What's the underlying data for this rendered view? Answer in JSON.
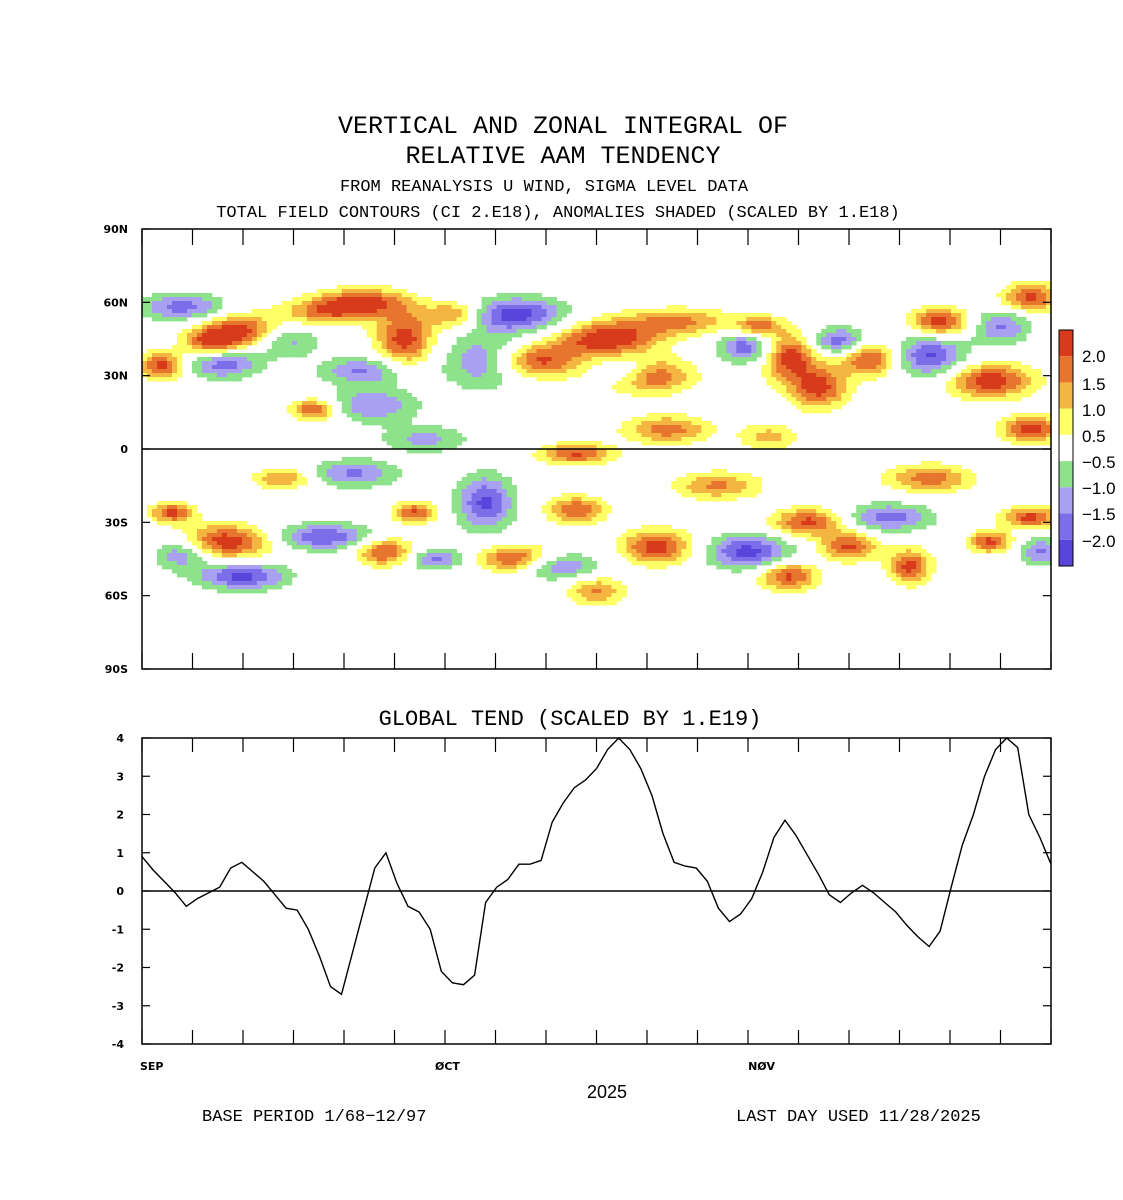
{
  "chart_data": [
    {
      "type": "heatmap",
      "title_line1": "VERTICAL AND ZONAL INTEGRAL OF",
      "title_line2": "RELATIVE AAM TENDENCY",
      "subtitle1": "FROM REANALYSIS U WIND,  SIGMA LEVEL DATA",
      "subtitle2": "TOTAL FIELD CONTOURS (CI 2.E18),  ANOMALIES SHADED (SCALED BY 1.E18)",
      "x_axis": "time",
      "xlim_days": [
        0,
        90
      ],
      "y_ticks": [
        {
          "label": "90N",
          "lat": 90
        },
        {
          "label": "60N",
          "lat": 60
        },
        {
          "label": "30N",
          "lat": 30
        },
        {
          "label": "0",
          "lat": 0
        },
        {
          "label": "30S",
          "lat": -30
        },
        {
          "label": "60S",
          "lat": -60
        },
        {
          "label": "90S",
          "lat": -90
        }
      ],
      "colorbar": {
        "levels": [
          {
            "label": "2.0",
            "color": "#d83a1c"
          },
          {
            "label": "1.5",
            "color": "#e7752e"
          },
          {
            "label": "1.0",
            "color": "#f4b640"
          },
          {
            "label": "0.5",
            "color": "#ffff66"
          },
          {
            "label": "",
            "color": "#ffffff"
          },
          {
            "label": "−0.5",
            "color": "#8ee28c"
          },
          {
            "label": "−1.0",
            "color": "#a9a0f2"
          },
          {
            "label": "−1.5",
            "color": "#7c6ee8"
          },
          {
            "label": "−2.0",
            "color": "#5a45dc"
          }
        ]
      },
      "anomaly_blobs": [
        {
          "d": 2,
          "lat": 34,
          "v": 2.3,
          "sd": 1.5,
          "sl": 4
        },
        {
          "d": 7,
          "lat": 43,
          "v": 2.2,
          "sd": 2,
          "sl": 4
        },
        {
          "d": 10,
          "lat": 48,
          "v": 2.5,
          "sd": 3,
          "sl": 5
        },
        {
          "d": 4,
          "lat": 58,
          "v": -1.8,
          "sd": 3,
          "sl": 4
        },
        {
          "d": 8,
          "lat": 36,
          "v": -2.0,
          "sd": 2.5,
          "sl": 5
        },
        {
          "d": 14,
          "lat": 45,
          "v": -1.6,
          "sd": 2.5,
          "sl": 5
        },
        {
          "d": 18,
          "lat": 56,
          "v": 1.6,
          "sd": 3,
          "sl": 4
        },
        {
          "d": 17,
          "lat": 16,
          "v": 2.1,
          "sd": 1.5,
          "sl": 3
        },
        {
          "d": 22,
          "lat": 60,
          "v": 2.2,
          "sd": 3,
          "sl": 4
        },
        {
          "d": 22,
          "lat": 32,
          "v": -1.6,
          "sd": 3,
          "sl": 4
        },
        {
          "d": 26,
          "lat": 45,
          "v": 2.3,
          "sd": 2,
          "sl": 8
        },
        {
          "d": 23,
          "lat": 18,
          "v": -1.5,
          "sd": 3,
          "sl": 5
        },
        {
          "d": 31,
          "lat": 55,
          "v": 1.8,
          "sd": 2,
          "sl": 4
        },
        {
          "d": 34,
          "lat": 36,
          "v": -1.6,
          "sd": 3,
          "sl": 8
        },
        {
          "d": 37,
          "lat": 55,
          "v": -2.3,
          "sd": 3.5,
          "sl": 5
        },
        {
          "d": 39,
          "lat": 36,
          "v": 2.3,
          "sd": 3,
          "sl": 5
        },
        {
          "d": 46,
          "lat": 45,
          "v": 2.5,
          "sd": 3.5,
          "sl": 5
        },
        {
          "d": 50,
          "lat": 30,
          "v": 2.3,
          "sd": 3,
          "sl": 5
        },
        {
          "d": 48,
          "lat": 32,
          "v": -1.6,
          "sd": 2,
          "sl": 4
        },
        {
          "d": 53,
          "lat": 52,
          "v": 1.6,
          "sd": 4,
          "sl": 4
        },
        {
          "d": 60,
          "lat": 42,
          "v": -2.0,
          "sd": 2,
          "sl": 5
        },
        {
          "d": 64,
          "lat": 38,
          "v": 2.4,
          "sd": 2,
          "sl": 7
        },
        {
          "d": 67,
          "lat": 25,
          "v": 2.2,
          "sd": 2,
          "sl": 6
        },
        {
          "d": 61,
          "lat": 50,
          "v": 2.0,
          "sd": 1.5,
          "sl": 3
        },
        {
          "d": 69,
          "lat": 44,
          "v": -2.0,
          "sd": 2,
          "sl": 4
        },
        {
          "d": 72,
          "lat": 37,
          "v": 2.2,
          "sd": 2,
          "sl": 5
        },
        {
          "d": 78,
          "lat": 38,
          "v": -2.1,
          "sd": 2.5,
          "sl": 6
        },
        {
          "d": 79,
          "lat": 52,
          "v": 2.4,
          "sd": 2,
          "sl": 4
        },
        {
          "d": 84,
          "lat": 28,
          "v": 2.4,
          "sd": 3,
          "sl": 5
        },
        {
          "d": 85,
          "lat": 50,
          "v": -1.6,
          "sd": 2,
          "sl": 5
        },
        {
          "d": 88,
          "lat": 62,
          "v": 2.2,
          "sd": 2,
          "sl": 4
        },
        {
          "d": 88,
          "lat": 8,
          "v": 2.3,
          "sd": 2,
          "sl": 4
        },
        {
          "d": 43,
          "lat": -2,
          "v": 2.1,
          "sd": 2.5,
          "sl": 3
        },
        {
          "d": 52,
          "lat": 8,
          "v": 1.8,
          "sd": 3,
          "sl": 4
        },
        {
          "d": 4,
          "lat": -42,
          "v": -1.9,
          "sd": 2,
          "sl": 5
        },
        {
          "d": 8,
          "lat": -38,
          "v": 2.5,
          "sd": 3.5,
          "sl": 5
        },
        {
          "d": 10,
          "lat": -52,
          "v": -2.2,
          "sd": 3,
          "sl": 4
        },
        {
          "d": 3,
          "lat": -26,
          "v": 2.1,
          "sd": 1.5,
          "sl": 3
        },
        {
          "d": 18,
          "lat": -36,
          "v": -2.0,
          "sd": 3.5,
          "sl": 4
        },
        {
          "d": 24,
          "lat": -42,
          "v": 2.2,
          "sd": 2,
          "sl": 4
        },
        {
          "d": 27,
          "lat": -26,
          "v": 2.1,
          "sd": 1.5,
          "sl": 3
        },
        {
          "d": 29,
          "lat": -45,
          "v": -1.6,
          "sd": 2,
          "sl": 3
        },
        {
          "d": 34,
          "lat": -22,
          "v": -2.1,
          "sd": 2,
          "sl": 8
        },
        {
          "d": 37,
          "lat": -45,
          "v": 2.3,
          "sd": 2.5,
          "sl": 4
        },
        {
          "d": 41,
          "lat": -48,
          "v": -1.6,
          "sd": 3,
          "sl": 4
        },
        {
          "d": 43,
          "lat": -25,
          "v": 2.0,
          "sd": 2,
          "sl": 4
        },
        {
          "d": 51,
          "lat": -40,
          "v": 2.3,
          "sd": 2.5,
          "sl": 5
        },
        {
          "d": 45,
          "lat": -58,
          "v": 1.6,
          "sd": 2,
          "sl": 4
        },
        {
          "d": 60,
          "lat": -42,
          "v": -2.2,
          "sd": 3,
          "sl": 5
        },
        {
          "d": 64,
          "lat": -52,
          "v": 2.2,
          "sd": 2,
          "sl": 4
        },
        {
          "d": 66,
          "lat": -30,
          "v": 2.2,
          "sd": 2.5,
          "sl": 4
        },
        {
          "d": 70,
          "lat": -40,
          "v": 2.1,
          "sd": 2,
          "sl": 4
        },
        {
          "d": 74,
          "lat": -28,
          "v": -1.8,
          "sd": 3,
          "sl": 4
        },
        {
          "d": 76,
          "lat": -48,
          "v": 2.2,
          "sd": 1.5,
          "sl": 5
        },
        {
          "d": 78,
          "lat": -12,
          "v": 1.8,
          "sd": 3,
          "sl": 4
        },
        {
          "d": 84,
          "lat": -38,
          "v": 2.2,
          "sd": 1.5,
          "sl": 3
        },
        {
          "d": 88,
          "lat": -28,
          "v": 2.2,
          "sd": 2,
          "sl": 3
        },
        {
          "d": 89,
          "lat": -42,
          "v": -1.6,
          "sd": 1.5,
          "sl": 4
        },
        {
          "d": 21,
          "lat": -10,
          "v": -1.6,
          "sd": 3,
          "sl": 4
        },
        {
          "d": 14,
          "lat": -12,
          "v": 1.6,
          "sd": 2,
          "sl": 3
        },
        {
          "d": 57,
          "lat": -15,
          "v": 1.6,
          "sd": 3,
          "sl": 4
        },
        {
          "d": 28,
          "lat": 4,
          "v": -1.2,
          "sd": 3,
          "sl": 4
        },
        {
          "d": 62,
          "lat": 5,
          "v": 1.2,
          "sd": 2,
          "sl": 4
        }
      ]
    },
    {
      "type": "line",
      "title": "GLOBAL TEND (SCALED BY 1.E19)",
      "ylim": [
        -4,
        4
      ],
      "y_ticks": [
        "4",
        "3",
        "2",
        "1",
        "0",
        "-1",
        "-2",
        "-3",
        "-4"
      ],
      "x_tick_labels": [
        {
          "label": "SEP",
          "day": 0
        },
        {
          "label": "ØCT",
          "day": 30
        },
        {
          "label": "NØV",
          "day": 61
        }
      ],
      "xlim_days": [
        0,
        90
      ],
      "xlabel": "2025",
      "series": [
        {
          "name": "global tendency",
          "values": [
            0.9,
            0.55,
            0.25,
            -0.05,
            -0.4,
            -0.2,
            -0.05,
            0.1,
            0.6,
            0.75,
            0.5,
            0.25,
            -0.1,
            -0.45,
            -0.5,
            -1.0,
            -1.7,
            -2.5,
            -2.7,
            -1.6,
            -0.5,
            0.6,
            1.0,
            0.2,
            -0.4,
            -0.55,
            -1.0,
            -2.1,
            -2.4,
            -2.45,
            -2.2,
            -0.3,
            0.1,
            0.3,
            0.7,
            0.7,
            0.8,
            1.8,
            2.3,
            2.7,
            2.9,
            3.2,
            3.7,
            4.0,
            3.7,
            3.2,
            2.5,
            1.5,
            0.75,
            0.65,
            0.6,
            0.25,
            -0.45,
            -0.8,
            -0.6,
            -0.2,
            0.5,
            1.4,
            1.85,
            1.45,
            0.95,
            0.45,
            -0.1,
            -0.3,
            -0.05,
            0.15,
            -0.05,
            -0.3,
            -0.55,
            -0.9,
            -1.2,
            -1.45,
            -1.05,
            0.1,
            1.2,
            2.0,
            3.0,
            3.7,
            4.0,
            3.75,
            2.0,
            1.4,
            0.7
          ]
        }
      ]
    }
  ],
  "footer": {
    "base_period": "BASE PERIOD  1/68−12/97",
    "last_day": "LAST DAY USED 11/28/2025"
  }
}
